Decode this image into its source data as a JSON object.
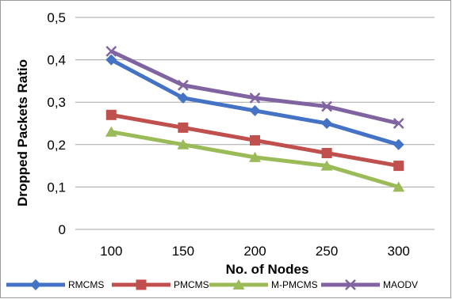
{
  "chart_data": {
    "type": "line",
    "xlabel": "No. of Nodes",
    "ylabel": "Dropped Packets Ratio",
    "categories": [
      "100",
      "150",
      "200",
      "250",
      "300"
    ],
    "ylim": [
      0,
      0.5
    ],
    "yticks": [
      "0",
      "0,1",
      "0,2",
      "0,3",
      "0,4",
      "0,5"
    ],
    "grid": "horizontal",
    "legend_position": "bottom",
    "series": [
      {
        "name": "RMCMS",
        "color": "#4472C4",
        "marker": "diamond",
        "values": [
          0.4,
          0.31,
          0.28,
          0.25,
          0.2
        ]
      },
      {
        "name": "PMCMS",
        "color": "#C0504D",
        "marker": "square",
        "values": [
          0.27,
          0.24,
          0.21,
          0.18,
          0.15
        ]
      },
      {
        "name": "M-PMCMS",
        "color": "#9BBB59",
        "marker": "triangle",
        "values": [
          0.23,
          0.2,
          0.17,
          0.15,
          0.1
        ]
      },
      {
        "name": "MAODV",
        "color": "#8064A2",
        "marker": "x",
        "values": [
          0.42,
          0.34,
          0.31,
          0.29,
          0.25
        ]
      }
    ]
  }
}
